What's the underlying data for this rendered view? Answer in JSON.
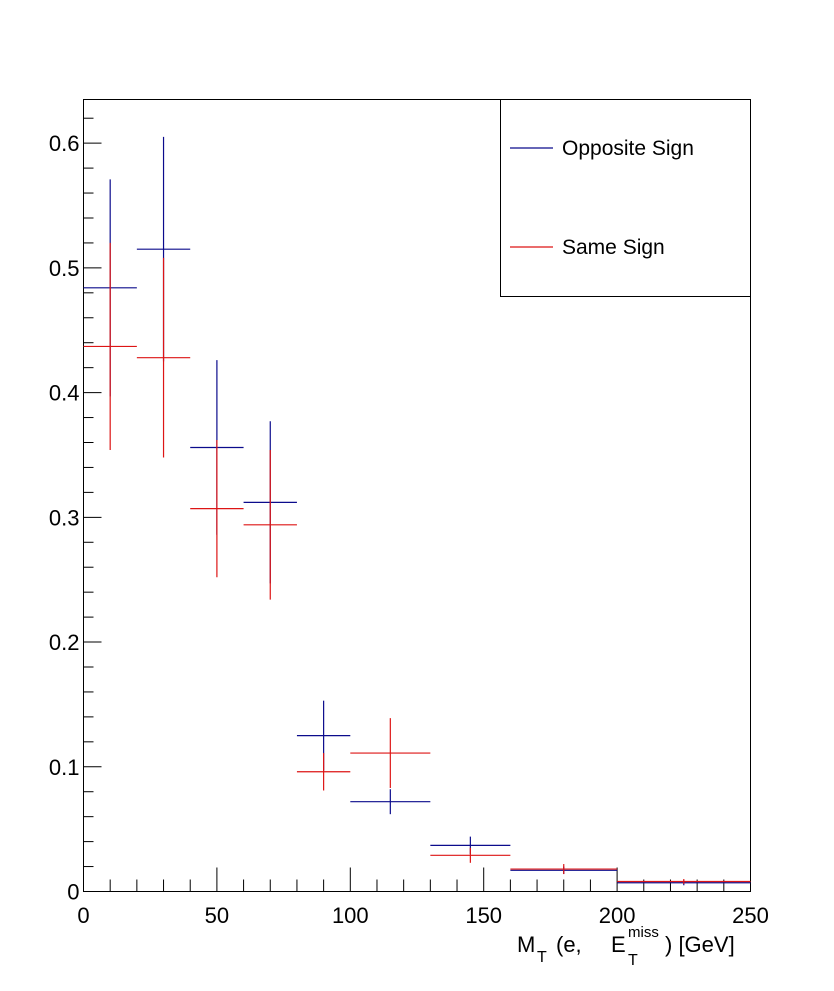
{
  "chart_data": {
    "type": "scatter",
    "style": "histogram-with-error-bars",
    "title": "",
    "xlabel": {
      "main": "M",
      "main_sub": "T",
      "paren_open": "(e,",
      "var": "E",
      "var_sub": "T",
      "var_sup": "miss",
      "tail": ") [GeV]"
    },
    "ylabel": "",
    "xlim": [
      0,
      250
    ],
    "ylim": [
      0,
      0.635
    ],
    "x_ticks": [
      "0",
      "50",
      "100",
      "150",
      "200",
      "250"
    ],
    "y_ticks": [
      "0",
      "0.1",
      "0.2",
      "0.3",
      "0.4",
      "0.5",
      "0.6"
    ],
    "grid": false,
    "legend": {
      "position": "top-right",
      "entries": [
        "Opposite Sign",
        "Same Sign"
      ]
    },
    "bins": [
      [
        0,
        20
      ],
      [
        20,
        40
      ],
      [
        40,
        60
      ],
      [
        60,
        80
      ],
      [
        80,
        100
      ],
      [
        100,
        130
      ],
      [
        130,
        160
      ],
      [
        160,
        200
      ],
      [
        200,
        250
      ]
    ],
    "series": [
      {
        "name": "Opposite Sign",
        "color": "#0b0b8c",
        "x": [
          10,
          30,
          50,
          70,
          90,
          115,
          145,
          180,
          225
        ],
        "values": [
          0.484,
          0.515,
          0.356,
          0.312,
          0.125,
          0.072,
          0.037,
          0.017,
          0.007
        ],
        "errors": [
          0.087,
          0.09,
          0.07,
          0.065,
          0.028,
          0.01,
          0.007,
          0.003,
          0.002
        ]
      },
      {
        "name": "Same Sign",
        "color": "#dd1515",
        "x": [
          10,
          30,
          50,
          70,
          90,
          115,
          145,
          180,
          225
        ],
        "values": [
          0.437,
          0.428,
          0.307,
          0.294,
          0.096,
          0.111,
          0.029,
          0.018,
          0.008
        ],
        "errors": [
          0.083,
          0.08,
          0.055,
          0.06,
          0.015,
          0.028,
          0.006,
          0.004,
          0.002
        ]
      }
    ]
  }
}
